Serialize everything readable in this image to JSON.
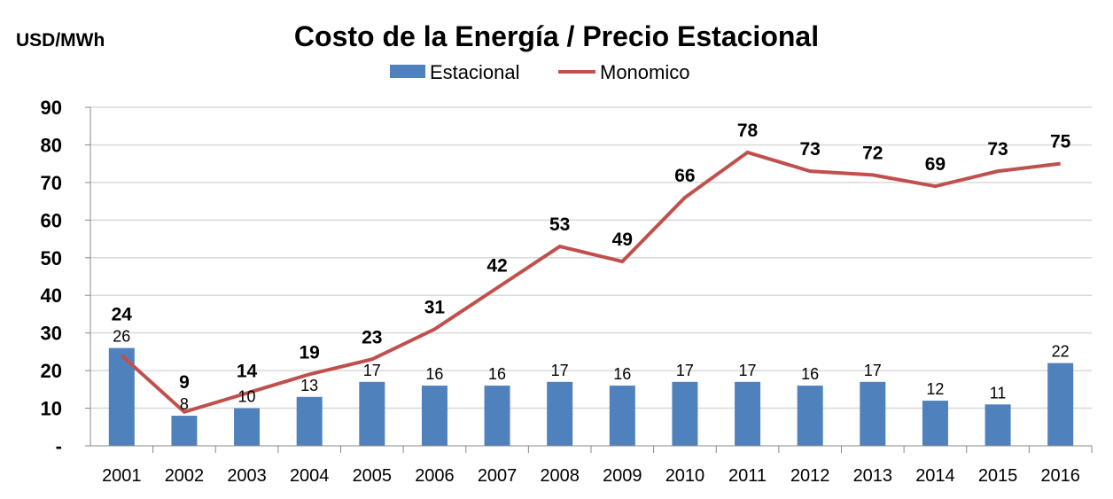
{
  "chart_data": {
    "type": "bar+line",
    "title": "Costo de la Energía / Precio Estacional",
    "ylabel": "USD/MWh",
    "xlabel": "",
    "ylim": [
      0,
      90
    ],
    "yticks": [
      "-",
      "10",
      "20",
      "30",
      "40",
      "50",
      "60",
      "70",
      "80",
      "90"
    ],
    "grid": true,
    "legend_position": "top",
    "categories": [
      "2001",
      "2002",
      "2003",
      "2004",
      "2005",
      "2006",
      "2007",
      "2008",
      "2009",
      "2010",
      "2011",
      "2012",
      "2013",
      "2014",
      "2015",
      "2016"
    ],
    "series": [
      {
        "name": "Estacional",
        "type": "bar",
        "color": "#4f81bd",
        "values": [
          26,
          8,
          10,
          13,
          17,
          16,
          16,
          17,
          16,
          17,
          17,
          16,
          17,
          12,
          11,
          22
        ]
      },
      {
        "name": "Monomico",
        "type": "line",
        "color": "#c0504d",
        "values": [
          24,
          9,
          14,
          19,
          23,
          31,
          42,
          53,
          49,
          66,
          78,
          73,
          72,
          69,
          73,
          75
        ]
      }
    ]
  }
}
